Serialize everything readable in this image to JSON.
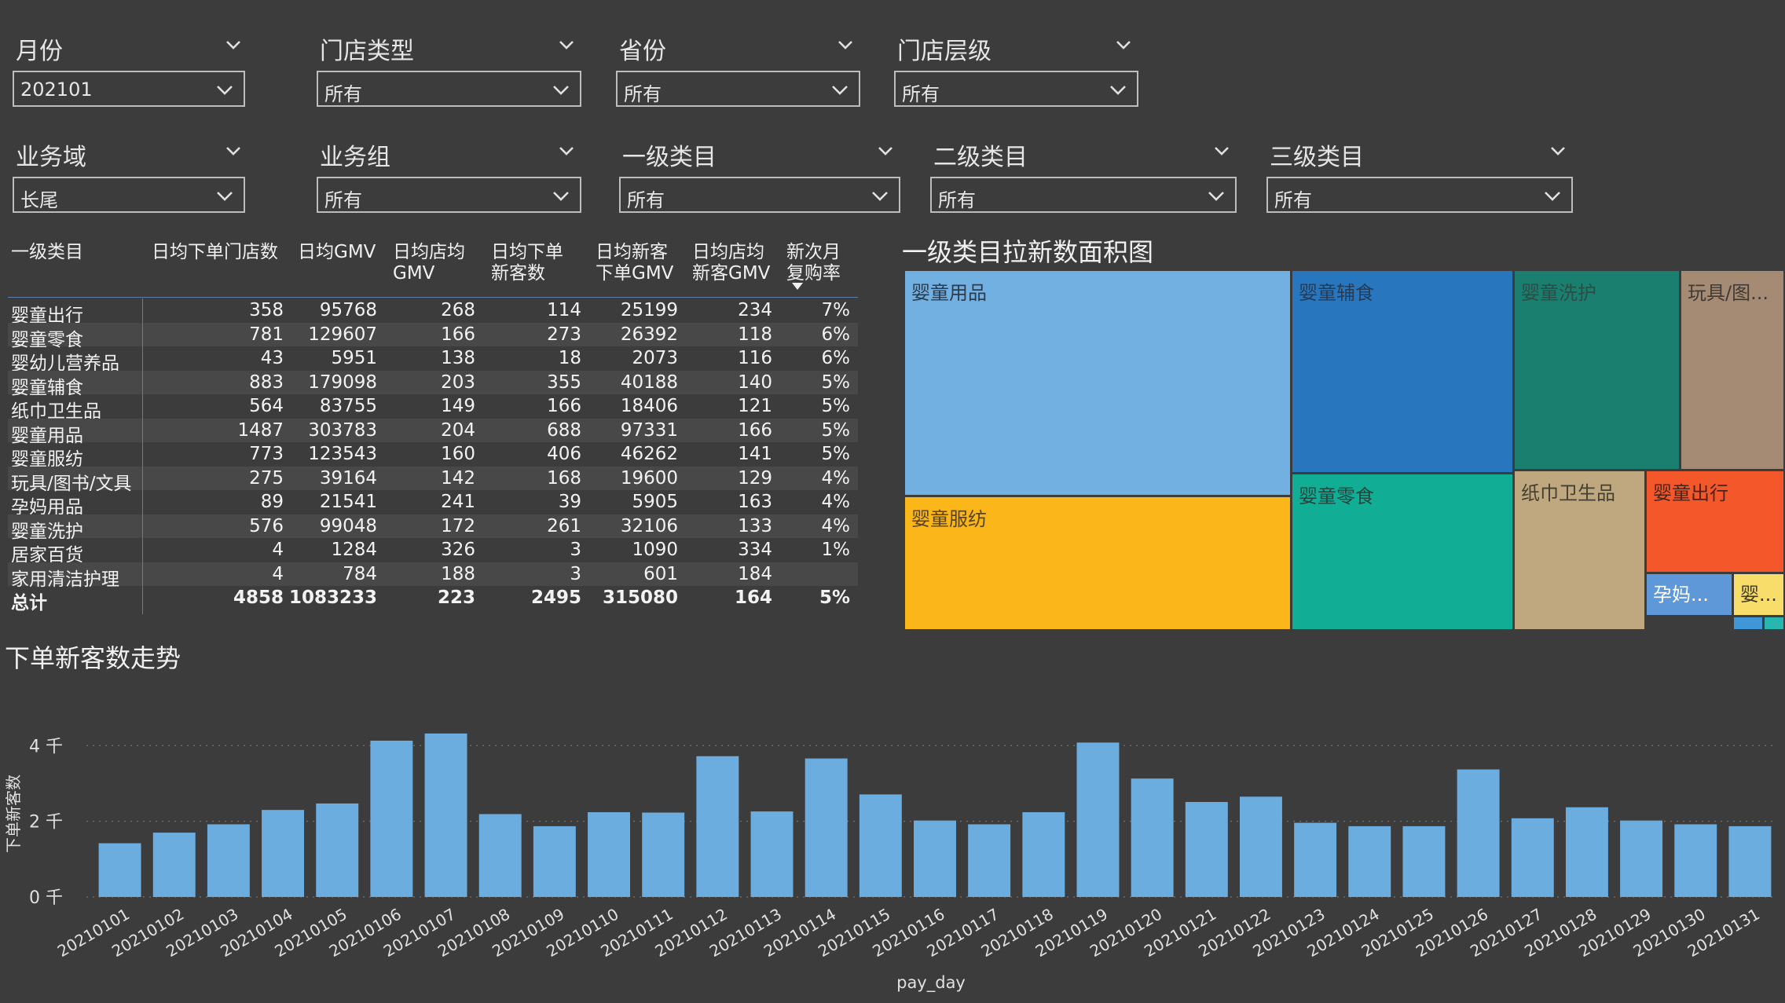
{
  "colors": {
    "background": "#3c3c3c",
    "bar": "#6cade0",
    "treemap": {
      "婴童用品": "#72b0e1",
      "婴童辅食": "#2877be",
      "婴童洗护": "#1a7f6e",
      "玩具/图书/文具": "#a68b74",
      "婴童服纺": "#fbb61a",
      "婴童零食": "#12ad95",
      "纸巾卫生品": "#bfa880",
      "婴童出行": "#f4582a",
      "孕妈用品": "#5f98d8",
      "婴幼儿营养品": "#f8dd6a",
      "居家百货": "#3f97d8",
      "家用清洁护理": "#27b7b0"
    }
  },
  "slicers": {
    "month": {
      "label": "月份",
      "value": "202101"
    },
    "store_type": {
      "label": "门店类型",
      "value": "所有"
    },
    "province": {
      "label": "省份",
      "value": "所有"
    },
    "store_level": {
      "label": "门店层级",
      "value": "所有"
    },
    "business_domain": {
      "label": "业务域",
      "value": "长尾"
    },
    "business_group": {
      "label": "业务组",
      "value": "所有"
    },
    "cat1": {
      "label": "一级类目",
      "value": "所有"
    },
    "cat2": {
      "label": "二级类目",
      "value": "所有"
    },
    "cat3": {
      "label": "三级类目",
      "value": "所有"
    }
  },
  "table": {
    "headers": {
      "c0": "一级类目",
      "c1": "日均下单门店数",
      "c2": "日均GMV",
      "c3a": "日均店均",
      "c3b": "GMV",
      "c4a": "日均下单",
      "c4b": "新客数",
      "c5a": "日均新客",
      "c5b": "下单GMV",
      "c6a": "日均店均",
      "c6b": "新客GMV",
      "c7a": "新次月",
      "c7b": "复购率"
    },
    "rows": [
      [
        "婴童出行",
        "358",
        "95768",
        "268",
        "114",
        "25199",
        "234",
        "7%"
      ],
      [
        "婴童零食",
        "781",
        "129607",
        "166",
        "273",
        "26392",
        "118",
        "6%"
      ],
      [
        "婴幼儿营养品",
        "43",
        "5951",
        "138",
        "18",
        "2073",
        "116",
        "6%"
      ],
      [
        "婴童辅食",
        "883",
        "179098",
        "203",
        "355",
        "40188",
        "140",
        "5%"
      ],
      [
        "纸巾卫生品",
        "564",
        "83755",
        "149",
        "166",
        "18406",
        "121",
        "5%"
      ],
      [
        "婴童用品",
        "1487",
        "303783",
        "204",
        "688",
        "97331",
        "166",
        "5%"
      ],
      [
        "婴童服纺",
        "773",
        "123543",
        "160",
        "406",
        "46262",
        "141",
        "5%"
      ],
      [
        "玩具/图书/文具",
        "275",
        "39164",
        "142",
        "168",
        "19600",
        "129",
        "4%"
      ],
      [
        "孕妈用品",
        "89",
        "21541",
        "241",
        "39",
        "5905",
        "163",
        "4%"
      ],
      [
        "婴童洗护",
        "576",
        "99048",
        "172",
        "261",
        "32106",
        "133",
        "4%"
      ],
      [
        "居家百货",
        "4",
        "1284",
        "326",
        "3",
        "1090",
        "334",
        "1%"
      ],
      [
        "家用清洁护理",
        "4",
        "784",
        "188",
        "3",
        "601",
        "184",
        ""
      ]
    ],
    "total": [
      "总计",
      "4858",
      "1083233",
      "223",
      "2495",
      "315080",
      "164",
      "5%"
    ]
  },
  "treemap": {
    "title": "一级类目拉新数面积图",
    "labels": {
      "baby_goods": "婴童用品",
      "baby_food": "婴童辅食",
      "baby_wash": "婴童洗护",
      "toys": "玩具/图...",
      "baby_clothes": "婴童服纺",
      "baby_snacks": "婴童零食",
      "tissue": "纸巾卫生品",
      "baby_travel": "婴童出行",
      "maternity": "孕妈...",
      "nutrition": "婴..."
    }
  },
  "chart_data": {
    "type": "bar",
    "title": "下单新客数走势",
    "xlabel": "pay_day",
    "ylabel": "下单新客数",
    "ylim": [
      0,
      4400
    ],
    "y_ticks": [
      0,
      2000,
      4000
    ],
    "y_tick_labels": [
      "0 千",
      "2 千",
      "4 千"
    ],
    "grid": true,
    "categories": [
      "20210101",
      "20210102",
      "20210103",
      "20210104",
      "20210105",
      "20210106",
      "20210107",
      "20210108",
      "20210109",
      "20210110",
      "20210111",
      "20210112",
      "20210113",
      "20210114",
      "20210115",
      "20210116",
      "20210117",
      "20210118",
      "20210119",
      "20210120",
      "20210121",
      "20210122",
      "20210123",
      "20210124",
      "20210125",
      "20210126",
      "20210127",
      "20210128",
      "20210129",
      "20210130",
      "20210131"
    ],
    "values": [
      1420,
      1700,
      1920,
      2300,
      2470,
      4130,
      4320,
      2190,
      1870,
      2240,
      2230,
      3720,
      2260,
      3660,
      2710,
      2020,
      1920,
      2240,
      4080,
      3130,
      2510,
      2650,
      1960,
      1870,
      1870,
      3370,
      2080,
      2370,
      2020,
      1920,
      1870
    ]
  }
}
